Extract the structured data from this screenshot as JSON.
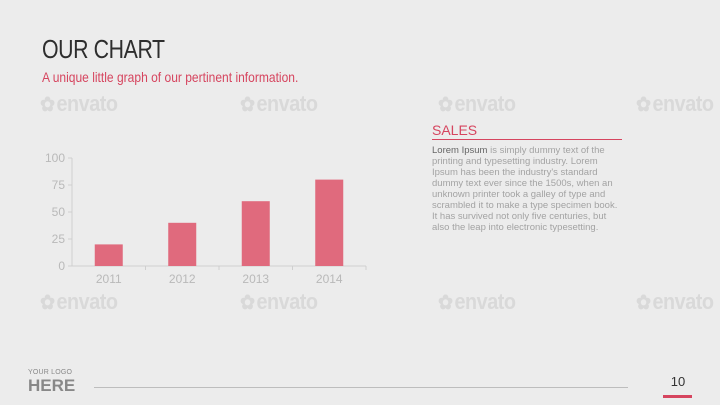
{
  "slide": {
    "title": "OUR CHART",
    "subtitle": "A unique little graph of our pertinent information.",
    "page_number": "10",
    "accent_color": "#d6455f"
  },
  "watermark": {
    "text": "envato",
    "icon": "leaf-icon"
  },
  "sidebar": {
    "heading": "SALES",
    "lead": "Lorem Ipsum",
    "body": " is simply dummy text of the printing and typesetting industry. Lorem Ipsum has been the industry's standard dummy text ever since the 1500s, when an unknown printer took a galley of type and scrambled it to make a type specimen book. It has survived not only five centuries, but also the leap into electronic typesetting."
  },
  "logo": {
    "top": "YOUR LOGO",
    "bottom": "HERE"
  },
  "chart_data": {
    "type": "bar",
    "categories": [
      "2011",
      "2012",
      "2013",
      "2014"
    ],
    "values": [
      20,
      40,
      60,
      80
    ],
    "ylim": [
      0,
      100
    ],
    "yticks": [
      0,
      25,
      50,
      75,
      100
    ],
    "bar_color": "#e06a7d",
    "grid": false,
    "legend": "none"
  }
}
